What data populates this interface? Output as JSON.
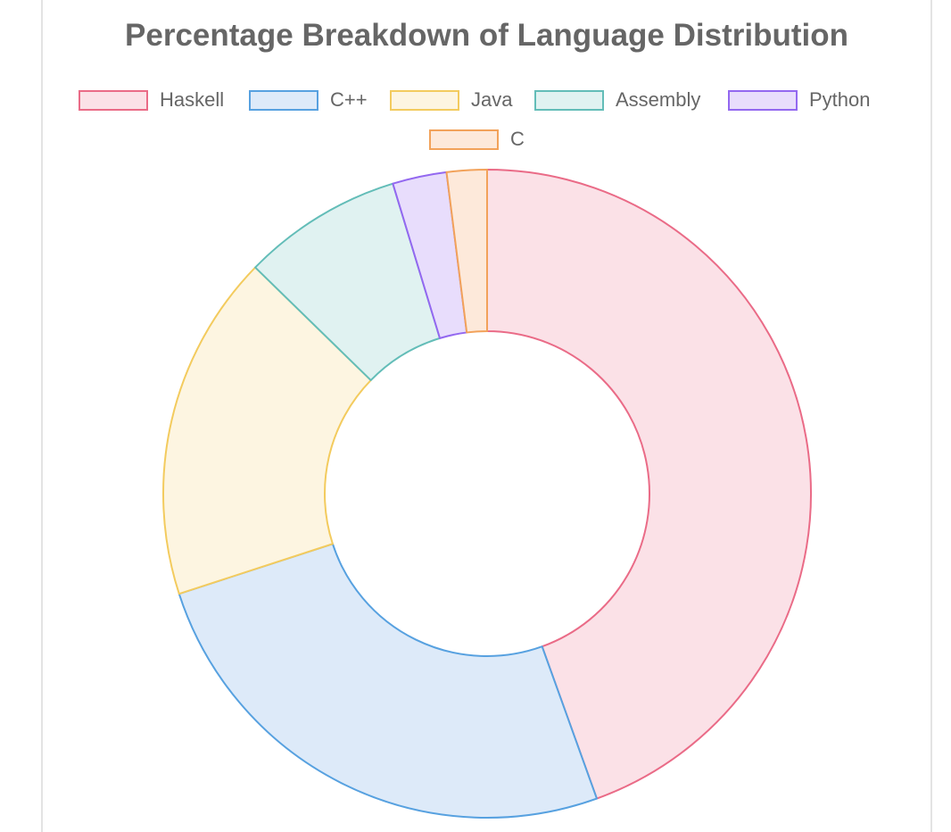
{
  "chart_data": {
    "type": "doughnut",
    "title": "Percentage Breakdown of Language Distribution",
    "legend_position": "top",
    "categories": [
      "Haskell",
      "C++",
      "Java",
      "Assembly",
      "Python",
      "C"
    ],
    "values": [
      44.5,
      25.5,
      17.3,
      8.0,
      2.7,
      2.0
    ],
    "colors": {
      "Haskell": {
        "border": "#ea6b87",
        "fill": "#fbe1e7"
      },
      "C++": {
        "border": "#57a1e0",
        "fill": "#ddeaf9"
      },
      "Java": {
        "border": "#f3cb5e",
        "fill": "#fdf5e1"
      },
      "Assembly": {
        "border": "#63bdb8",
        "fill": "#e0f2f1"
      },
      "Python": {
        "border": "#9368f0",
        "fill": "#e8ddfc"
      },
      "C": {
        "border": "#f2a25a",
        "fill": "#fde9da"
      }
    }
  }
}
